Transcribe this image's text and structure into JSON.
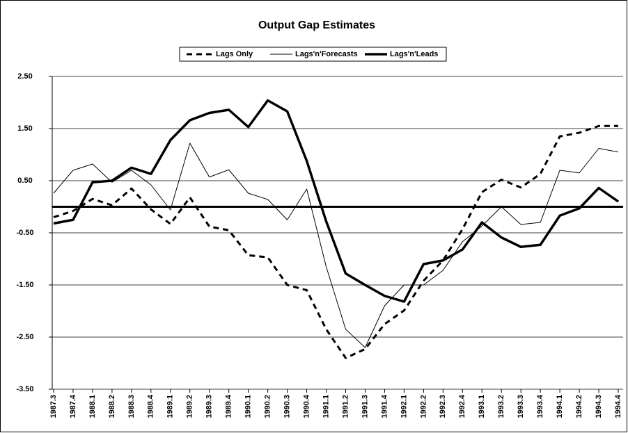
{
  "chart_data": {
    "type": "line",
    "title": "Output Gap Estimates",
    "categories": [
      "1987.3",
      "1987.4",
      "1988.1",
      "1988.2",
      "1988.3",
      "1988.4",
      "1989.1",
      "1989.2",
      "1989.3",
      "1989.4",
      "1990.1",
      "1990.2",
      "1990.3",
      "1990.4",
      "1991.1",
      "1991.2",
      "1991.3",
      "1991.4",
      "1992.1",
      "1992.2",
      "1992.3",
      "1992.4",
      "1993.1",
      "1993.2",
      "1993.3",
      "1993.4",
      "1994.1",
      "1994.2",
      "1994.3",
      "1994.4"
    ],
    "series": [
      {
        "name": "Lags Only",
        "color": "#000000",
        "style": "dashed",
        "values": [
          -0.2,
          -0.08,
          0.15,
          0.03,
          0.35,
          -0.05,
          -0.33,
          0.18,
          -0.38,
          -0.45,
          -0.93,
          -0.97,
          -1.5,
          -1.6,
          -2.35,
          -2.9,
          -2.73,
          -2.25,
          -1.99,
          -1.42,
          -1.03,
          -0.43,
          0.28,
          0.52,
          0.37,
          0.63,
          1.35,
          1.42,
          1.55,
          1.55
        ]
      },
      {
        "name": "Lags'n'Forecasts",
        "color": "#000000",
        "style": "thin",
        "values": [
          0.26,
          0.7,
          0.82,
          0.47,
          0.7,
          0.42,
          -0.06,
          1.22,
          0.57,
          0.71,
          0.26,
          0.14,
          -0.25,
          0.34,
          -1.15,
          -2.35,
          -2.7,
          -1.9,
          -1.5,
          -1.5,
          -1.22,
          -0.67,
          -0.37,
          0,
          -0.34,
          -0.3,
          0.7,
          0.65,
          1.12,
          1.05
        ]
      },
      {
        "name": "Lags'n'Leads",
        "color": "#000000",
        "style": "thick",
        "values": [
          -0.32,
          -0.25,
          0.47,
          0.5,
          0.75,
          0.63,
          1.28,
          1.66,
          1.8,
          1.86,
          1.53,
          2.04,
          1.83,
          0.88,
          -0.28,
          -1.28,
          -1.5,
          -1.71,
          -1.82,
          -1.1,
          -1.03,
          -0.82,
          -0.3,
          -0.59,
          -0.77,
          -0.73,
          -0.17,
          -0.03,
          0.36,
          0.1
        ]
      }
    ],
    "ylim": [
      -3.5,
      2.5
    ],
    "yticks": [
      {
        "value": -3.5,
        "label": "-3.50"
      },
      {
        "value": -2.5,
        "label": "-2.50"
      },
      {
        "value": -1.5,
        "label": "-1.50"
      },
      {
        "value": -0.5,
        "label": "-0.50"
      },
      {
        "value": 0.5,
        "label": "0.50"
      },
      {
        "value": 1.5,
        "label": "1.50"
      },
      {
        "value": 2.5,
        "label": "2.50"
      }
    ],
    "grid": true,
    "legend": "top"
  }
}
